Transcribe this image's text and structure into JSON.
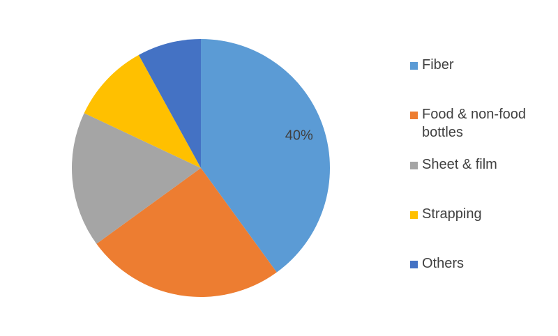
{
  "chart_data": {
    "type": "pie",
    "categories": [
      "Fiber",
      "Food & non-food bottles",
      "Sheet & film",
      "Strapping",
      "Others"
    ],
    "values": [
      40,
      25,
      17,
      10,
      8
    ],
    "value_labels": [
      "40%",
      null,
      null,
      null,
      null
    ],
    "colors": [
      "#5b9bd5",
      "#ed7d31",
      "#a5a5a5",
      "#ffc000",
      "#4472c4"
    ],
    "legend": "right"
  }
}
